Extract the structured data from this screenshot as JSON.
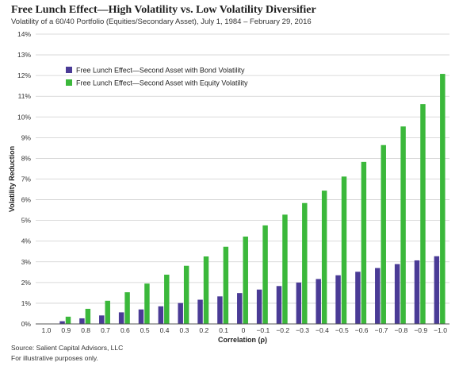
{
  "header": {
    "title": "Free Lunch Effect—High Volatility vs. Low Volatility Diversifier",
    "subtitle": "Volatility of a 60/40 Portfolio (Equities/Secondary Asset), July 1, 1984 – February 29, 2016"
  },
  "footer": {
    "source": "Source: Salient Capital Advisors, LLC",
    "note": "For illustrative purposes only."
  },
  "colors": {
    "bond": "#4a3b96",
    "equity": "#3bb83b",
    "grid": "#cfcfcf"
  },
  "chart_data": {
    "type": "bar",
    "xlabel": "Correlation (ρ)",
    "ylabel": "Volatility Reduction",
    "ylim": [
      0,
      14
    ],
    "yticks": [
      "0%",
      "1%",
      "2%",
      "3%",
      "4%",
      "5%",
      "6%",
      "7%",
      "8%",
      "9%",
      "10%",
      "11%",
      "12%",
      "13%",
      "14%"
    ],
    "grid": true,
    "legend_position": "top-left",
    "categories": [
      "1.0",
      "0.9",
      "0.8",
      "0.7",
      "0.6",
      "0.5",
      "0.4",
      "0.3",
      "0.2",
      "0.1",
      "0",
      "−0.1",
      "−0.2",
      "−0.3",
      "−0.4",
      "−0.5",
      "−0.6",
      "−0.7",
      "−0.8",
      "−0.9",
      "−1.0"
    ],
    "series": [
      {
        "name": "Free Lunch Effect—Second Asset with Bond Volatility",
        "color": "#4a3b96",
        "values": [
          0,
          0.13,
          0.27,
          0.41,
          0.56,
          0.7,
          0.85,
          1.01,
          1.17,
          1.33,
          1.49,
          1.66,
          1.83,
          2.0,
          2.17,
          2.35,
          2.52,
          2.7,
          2.89,
          3.07,
          3.27
        ]
      },
      {
        "name": "Free Lunch Effect—Second Asset with Equity Volatility",
        "color": "#3bb83b",
        "values": [
          0,
          0.35,
          0.73,
          1.12,
          1.53,
          1.95,
          2.38,
          2.81,
          3.26,
          3.73,
          4.22,
          4.76,
          5.28,
          5.84,
          6.44,
          7.12,
          7.83,
          8.64,
          9.54,
          10.62,
          12.08
        ]
      }
    ]
  }
}
